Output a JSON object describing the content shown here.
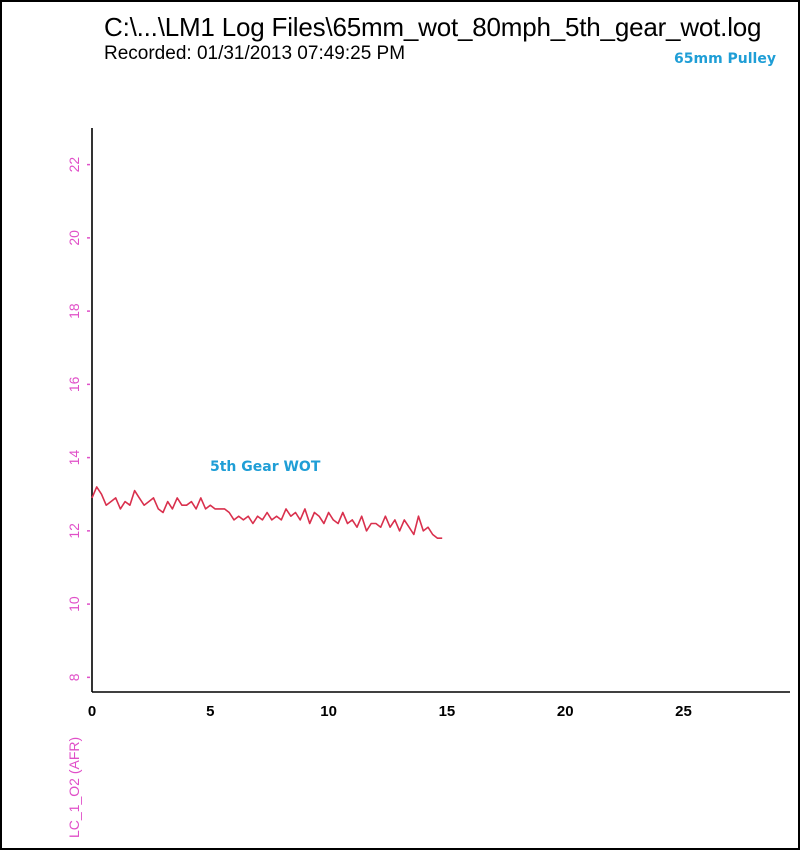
{
  "header": {
    "title": "C:\\...\\LM1 Log Files\\65mm_wot_80mph_5th_gear_wot.log",
    "recorded": "Recorded: 01/31/2013 07:49:25 PM"
  },
  "annotations": {
    "pulley": "65mm Pulley",
    "gear": "5th Gear WOT"
  },
  "colors": {
    "series": "#d9304d",
    "y_axis_text": "#e04fc8",
    "annotation": "#1f9ed6"
  },
  "chart_data": {
    "type": "line",
    "title": "C:\\...\\LM1 Log Files\\65mm_wot_80mph_5th_gear_wot.log",
    "xlabel": "",
    "ylabel": "LC_1_O2 (AFR)",
    "xlim": [
      0,
      29.5
    ],
    "ylim": [
      7.6,
      23
    ],
    "x_ticks": [
      0,
      5,
      10,
      15,
      20,
      25
    ],
    "y_ticks": [
      8,
      10,
      12,
      14,
      16,
      18,
      20,
      22
    ],
    "grid": false,
    "series": [
      {
        "name": "LC_1_O2 (AFR)",
        "x": [
          0,
          0.2,
          0.4,
          0.6,
          0.8,
          1.0,
          1.2,
          1.4,
          1.6,
          1.8,
          2.0,
          2.2,
          2.4,
          2.6,
          2.8,
          3.0,
          3.2,
          3.4,
          3.6,
          3.8,
          4.0,
          4.2,
          4.4,
          4.6,
          4.8,
          5.0,
          5.2,
          5.4,
          5.6,
          5.8,
          6.0,
          6.2,
          6.4,
          6.6,
          6.8,
          7.0,
          7.2,
          7.4,
          7.6,
          7.8,
          8.0,
          8.2,
          8.4,
          8.6,
          8.8,
          9.0,
          9.2,
          9.4,
          9.6,
          9.8,
          10.0,
          10.2,
          10.4,
          10.6,
          10.8,
          11.0,
          11.2,
          11.4,
          11.6,
          11.8,
          12.0,
          12.2,
          12.4,
          12.6,
          12.8,
          13.0,
          13.2,
          13.4,
          13.6,
          13.8,
          14.0,
          14.2,
          14.4,
          14.6,
          14.8
        ],
        "y": [
          12.9,
          13.2,
          13.0,
          12.7,
          12.8,
          12.9,
          12.6,
          12.8,
          12.7,
          13.1,
          12.9,
          12.7,
          12.8,
          12.9,
          12.6,
          12.5,
          12.8,
          12.6,
          12.9,
          12.7,
          12.7,
          12.8,
          12.6,
          12.9,
          12.6,
          12.7,
          12.6,
          12.6,
          12.6,
          12.5,
          12.3,
          12.4,
          12.3,
          12.4,
          12.2,
          12.4,
          12.3,
          12.5,
          12.3,
          12.4,
          12.3,
          12.6,
          12.4,
          12.5,
          12.3,
          12.6,
          12.2,
          12.5,
          12.4,
          12.2,
          12.5,
          12.3,
          12.2,
          12.5,
          12.2,
          12.3,
          12.1,
          12.4,
          12.0,
          12.2,
          12.2,
          12.1,
          12.4,
          12.1,
          12.3,
          12.0,
          12.3,
          12.1,
          11.9,
          12.4,
          12.0,
          12.1,
          11.9,
          11.8,
          11.8
        ]
      }
    ]
  }
}
